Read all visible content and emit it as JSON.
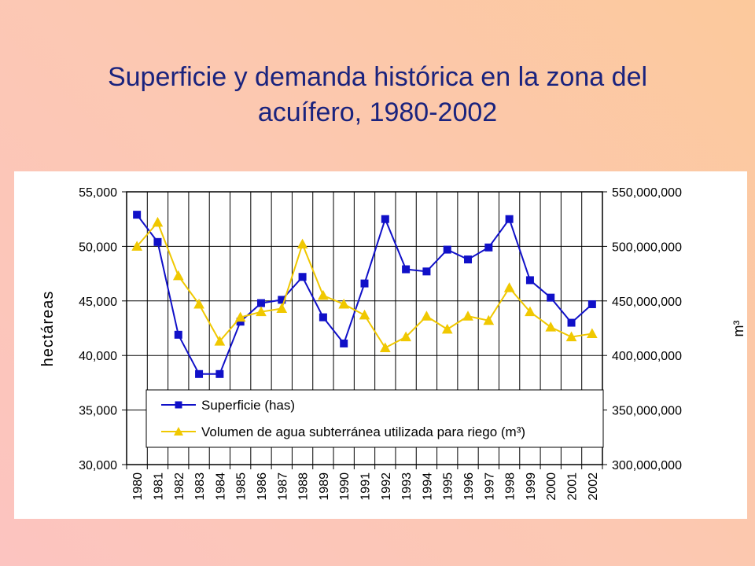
{
  "title_line1": "Superficie y demanda histórica en la zona del",
  "title_line2": "acuífero, 1980-2002",
  "colors": {
    "superficie": "#1010c8",
    "volumen": "#f0c800",
    "title": "#1a237e"
  },
  "chart_data": {
    "type": "line",
    "xlabel": "",
    "ylabel": "hectáreas",
    "ylabel_right": "m³",
    "ylim": [
      30000,
      55000
    ],
    "ylim_right": [
      300000000,
      550000000
    ],
    "yticks": [
      "30,000",
      "35,000",
      "40,000",
      "45,000",
      "50,000",
      "55,000"
    ],
    "yticks_right": [
      "300,000,000",
      "350,000,000",
      "400,000,000",
      "450,000,000",
      "500,000,000",
      "550,000,000"
    ],
    "grid": true,
    "legend_position": "lower-center",
    "categories": [
      "1980",
      "1981",
      "1982",
      "1983",
      "1984",
      "1985",
      "1986",
      "1987",
      "1988",
      "1989",
      "1990",
      "1991",
      "1992",
      "1993",
      "1994",
      "1995",
      "1996",
      "1997",
      "1998",
      "1999",
      "2000",
      "2001",
      "2002"
    ],
    "series": [
      {
        "name": "Superficie (has)",
        "axis": "left",
        "marker": "square",
        "values": [
          52900,
          50400,
          41900,
          38300,
          38300,
          43100,
          44800,
          45100,
          47200,
          43500,
          41100,
          46600,
          52500,
          47900,
          47700,
          49700,
          48800,
          49900,
          52500,
          46900,
          45300,
          43000,
          44700
        ]
      },
      {
        "name": "Volumen de agua subterránea utilizada para riego (m³)",
        "axis": "right",
        "marker": "triangle",
        "values": [
          500000000,
          522000000,
          473000000,
          447000000,
          413000000,
          435000000,
          440000000,
          443000000,
          502000000,
          455000000,
          447000000,
          437000000,
          407000000,
          417000000,
          436000000,
          424000000,
          436000000,
          432000000,
          462000000,
          440000000,
          426000000,
          417000000,
          420000000
        ]
      }
    ]
  }
}
